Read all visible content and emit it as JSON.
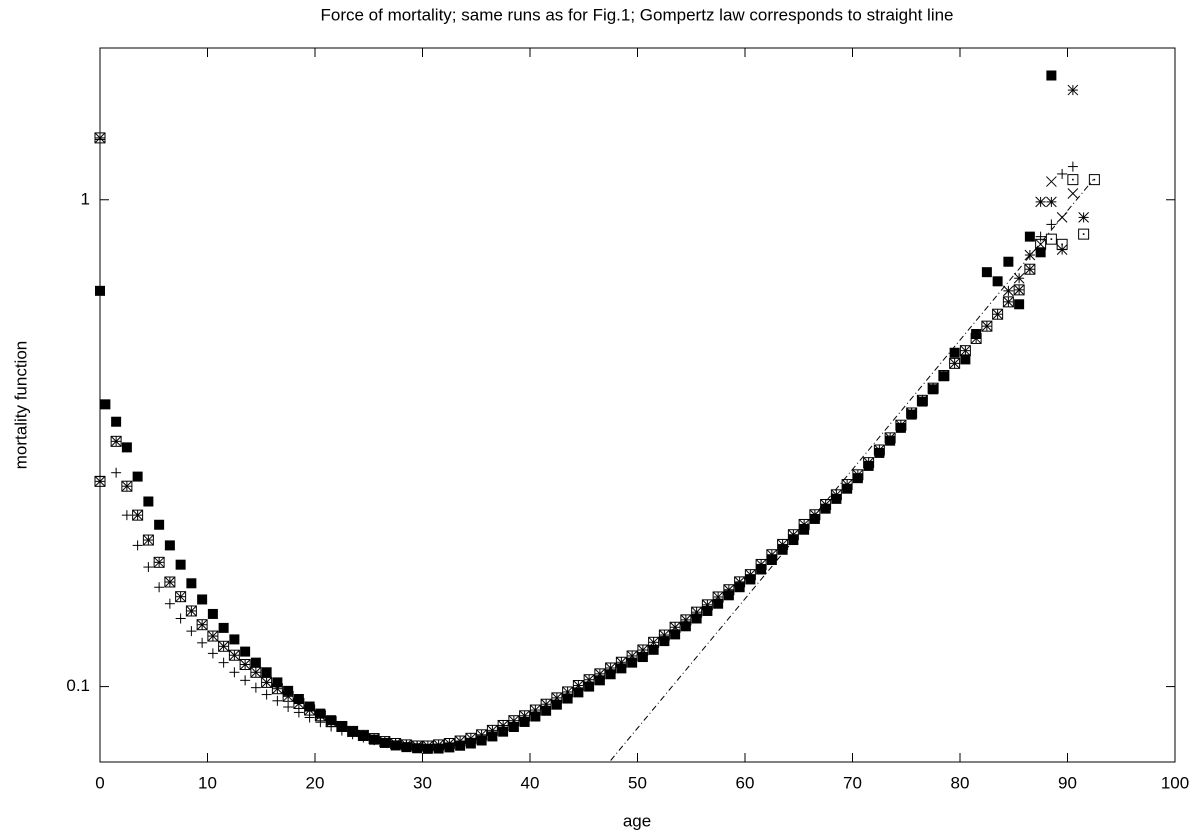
{
  "chart_data": {
    "type": "scatter",
    "title": "Force of mortality; same runs as for Fig.1; Gompertz law corresponds to straight line",
    "x_label": "age",
    "y_label": "mortality function",
    "xlim": [
      0,
      100
    ],
    "xticks": [
      0,
      10,
      20,
      30,
      40,
      50,
      60,
      70,
      80,
      90,
      100
    ],
    "ylim": [
      0.07,
      2.05
    ],
    "yticks": [
      0.1,
      1
    ],
    "y_log": true,
    "grid": false,
    "series": [
      {
        "marker": "filled-square",
        "color": "#000000",
        "x": [
          0,
          0.5,
          1.5,
          2.5,
          3.5,
          4.5,
          5.5,
          6.5,
          7.5,
          8.5,
          9.5,
          10.5,
          11.5,
          12.5,
          13.5,
          14.5,
          15.5,
          16.5,
          17.5,
          18.5,
          19.5,
          20.5,
          21.5,
          22.5,
          23.5,
          24.5,
          25.5,
          26.5,
          27.5,
          28.5,
          29.5,
          30.5,
          31.5,
          32.5,
          33.5,
          34.5,
          35.5,
          36.5,
          37.5,
          38.5,
          39.5,
          40.5,
          41.5,
          42.5,
          43.5,
          44.5,
          45.5,
          46.5,
          47.5,
          48.5,
          49.5,
          50.5,
          51.5,
          52.5,
          53.5,
          54.5,
          55.5,
          56.5,
          57.5,
          58.5,
          59.5,
          60.5,
          61.5,
          62.5,
          63.5,
          64.5,
          65.5,
          66.5,
          67.5,
          68.5,
          69.5,
          70.5,
          71.5,
          72.5,
          73.5,
          74.5,
          75.5,
          76.5,
          77.5,
          78.5,
          79.5,
          80.5,
          81.5,
          82.5,
          83.5,
          84.5,
          85.5,
          86.5,
          87.5,
          88.5
        ],
        "values": [
          0.65,
          0.38,
          0.35,
          0.31,
          0.27,
          0.24,
          0.215,
          0.195,
          0.178,
          0.163,
          0.151,
          0.141,
          0.132,
          0.125,
          0.118,
          0.112,
          0.107,
          0.102,
          0.098,
          0.0943,
          0.091,
          0.088,
          0.0853,
          0.083,
          0.0808,
          0.0792,
          0.0778,
          0.0766,
          0.0757,
          0.0751,
          0.0747,
          0.0745,
          0.0746,
          0.075,
          0.0756,
          0.0764,
          0.0775,
          0.079,
          0.0808,
          0.0826,
          0.0846,
          0.0868,
          0.0892,
          0.0918,
          0.0945,
          0.0973,
          0.1,
          0.103,
          0.106,
          0.109,
          0.112,
          0.115,
          0.119,
          0.124,
          0.128,
          0.133,
          0.138,
          0.143,
          0.148,
          0.154,
          0.16,
          0.166,
          0.174,
          0.182,
          0.191,
          0.2,
          0.21,
          0.221,
          0.232,
          0.243,
          0.255,
          0.268,
          0.284,
          0.302,
          0.32,
          0.34,
          0.362,
          0.385,
          0.408,
          0.434,
          0.485,
          0.47,
          0.53,
          0.71,
          0.68,
          0.746,
          0.61,
          0.84,
          0.78,
          1.8
        ]
      },
      {
        "marker": "plus",
        "color": "#000000",
        "x": [
          0,
          0,
          1.5,
          2.5,
          3.5,
          4.5,
          5.5,
          6.5,
          7.5,
          8.5,
          9.5,
          10.5,
          11.5,
          12.5,
          13.5,
          14.5,
          15.5,
          16.5,
          17.5,
          18.5,
          19.5,
          20.5,
          21.5,
          22.5,
          23.5,
          24.5,
          25.5,
          26.5,
          27.5,
          28.5,
          29.5,
          87.5,
          88.5,
          89.5,
          90.5
        ],
        "values": [
          1.33,
          0.27,
          0.275,
          0.225,
          0.195,
          0.176,
          0.16,
          0.148,
          0.138,
          0.13,
          0.123,
          0.117,
          0.112,
          0.107,
          0.103,
          0.0995,
          0.0963,
          0.0935,
          0.0908,
          0.0885,
          0.0864,
          0.0845,
          0.0828,
          0.0812,
          0.0798,
          0.0786,
          0.0776,
          0.0768,
          0.0761,
          0.0757,
          0.0755,
          0.84,
          0.89,
          1.13,
          1.17
        ]
      },
      {
        "marker": "boxed-star",
        "color": "#000000",
        "x": [
          0,
          0,
          1.5,
          2.5,
          3.5,
          4.5,
          5.5,
          6.5,
          7.5,
          8.5,
          9.5,
          10.5,
          11.5,
          12.5,
          13.5,
          14.5,
          15.5,
          16.5,
          17.5,
          18.5,
          19.5,
          20.5,
          21.5,
          22.5,
          23.5,
          24.5,
          25.5,
          26.5,
          27.5,
          28.5,
          29.5,
          30.5,
          31.5,
          32.5,
          33.5,
          34.5,
          35.5,
          36.5,
          37.5,
          38.5,
          39.5,
          40.5,
          41.5,
          42.5,
          43.5,
          44.5,
          45.5,
          46.5,
          47.5,
          48.5,
          49.5,
          50.5,
          51.5,
          52.5,
          53.5,
          54.5,
          55.5,
          56.5,
          57.5,
          58.5,
          59.5,
          60.5,
          61.5,
          62.5,
          63.5,
          64.5,
          65.5,
          66.5,
          67.5,
          68.5,
          69.5,
          70.5,
          71.5,
          72.5,
          73.5,
          74.5,
          75.5,
          76.5,
          77.5,
          78.5,
          79.5,
          80.5,
          81.5,
          82.5,
          83.5,
          84.5,
          85.5,
          86.5
        ],
        "values": [
          1.34,
          0.264,
          0.319,
          0.258,
          0.225,
          0.2,
          0.18,
          0.164,
          0.153,
          0.143,
          0.134,
          0.127,
          0.121,
          0.116,
          0.111,
          0.107,
          0.102,
          0.099,
          0.0955,
          0.0923,
          0.0895,
          0.0871,
          0.0847,
          0.0828,
          0.0809,
          0.0794,
          0.0782,
          0.0771,
          0.0764,
          0.0759,
          0.0755,
          0.0755,
          0.0759,
          0.0764,
          0.0773,
          0.0783,
          0.0796,
          0.0813,
          0.0832,
          0.0851,
          0.0871,
          0.0895,
          0.092,
          0.0948,
          0.0975,
          0.1005,
          0.1033,
          0.1062,
          0.1092,
          0.1122,
          0.1156,
          0.1189,
          0.1233,
          0.1276,
          0.1324,
          0.1371,
          0.1422,
          0.1472,
          0.1528,
          0.1581,
          0.1641,
          0.1698,
          0.1782,
          0.1866,
          0.1959,
          0.2051,
          0.2153,
          0.2254,
          0.2366,
          0.2477,
          0.26,
          0.2723,
          0.2884,
          0.3062,
          0.3243,
          0.3443,
          0.3648,
          0.3873,
          0.4102,
          0.4355,
          0.4613,
          0.4898,
          0.519,
          0.55,
          0.582,
          0.617,
          0.653,
          0.72
        ]
      },
      {
        "marker": "cross",
        "color": "#000000",
        "x": [
          87.5,
          88.5,
          89.5,
          90.5
        ],
        "values": [
          0.81,
          1.09,
          0.92,
          1.03
        ]
      },
      {
        "marker": "asterisk",
        "color": "#000000",
        "x": [
          84.5,
          85.5,
          86.5,
          87.5,
          88.5,
          89.5,
          90.5,
          91.5
        ],
        "values": [
          0.65,
          0.69,
          0.77,
          0.99,
          0.99,
          0.79,
          1.68,
          0.92
        ]
      },
      {
        "marker": "dot-square",
        "color": "#000000",
        "x": [
          87.5,
          88.5,
          89.5,
          90.5,
          91.5,
          92.5
        ],
        "values": [
          0.81,
          0.83,
          0.81,
          1.1,
          0.85,
          1.1
        ]
      },
      {
        "marker": "dash-dot-line",
        "color": "#000000",
        "x": [
          47.5,
          92.4
        ],
        "values": [
          0.0705,
          1.1
        ]
      }
    ]
  }
}
